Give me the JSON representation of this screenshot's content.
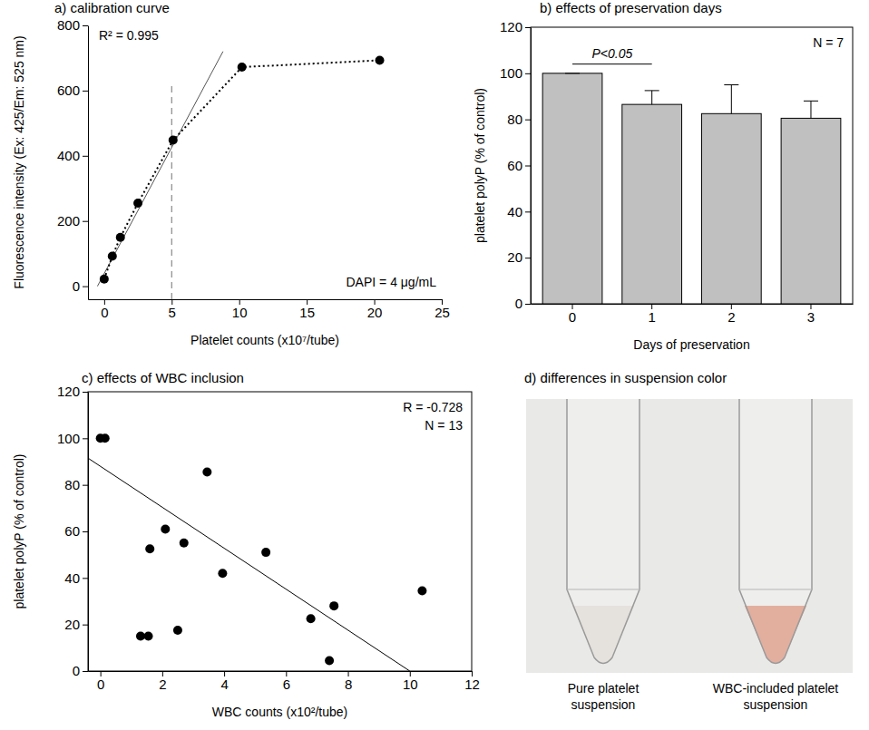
{
  "chart_data": [
    {
      "type": "line",
      "title": "a) calibration curve",
      "x_label": "Platelet counts (x10⁷/tube)",
      "y_label": "Fluorescence intensity (Ex: 425/Em: 525 nm)",
      "x": [
        0,
        0.6,
        1.2,
        2.5,
        5.1,
        10.2,
        20.4
      ],
      "values": [
        22,
        92,
        150,
        255,
        448,
        672,
        693
      ],
      "color": "#000000",
      "marker": "circle",
      "line_style": "dotted",
      "fit": {
        "x": [
          -0.5,
          8.8
        ],
        "y": [
          0,
          720
        ],
        "color": "#555555"
      },
      "cutoff": {
        "x": 5,
        "y": [
          -40,
          625
        ],
        "color": "#888888"
      },
      "annotations": [
        "R² = 0.995",
        "DAPI = 4 μg/mL"
      ],
      "xlim": [
        -1.2,
        25
      ],
      "xticks": [
        0,
        5,
        10,
        15,
        20,
        25
      ],
      "ylim": [
        -40,
        800
      ],
      "yticks": [
        0,
        200,
        400,
        600,
        800
      ],
      "grid": false
    },
    {
      "type": "bar",
      "title": "b) effects of preservation days",
      "x_label": "Days of preservation",
      "y_label": "platelet polyP (% of control)",
      "categories": [
        "0",
        "1",
        "2",
        "3"
      ],
      "values": [
        100,
        86.5,
        82.5,
        80.5
      ],
      "errors": [
        0,
        6,
        12.5,
        7.5
      ],
      "color": "#c0c0c0",
      "annotations": [
        "N = 7"
      ],
      "significance": {
        "text": "P<0.05",
        "from": "0",
        "to": "1",
        "y": 104
      },
      "ylim": [
        0,
        120
      ],
      "yticks": [
        0,
        20,
        40,
        60,
        80,
        100,
        120
      ],
      "grid": false
    },
    {
      "type": "scatter",
      "title": "c) effects of WBC inclusion",
      "x_label": "WBC counts (x10²/tube)",
      "y_label": "platelet polyP (% of control)",
      "x": [
        0,
        0.15,
        1.3,
        1.55,
        1.6,
        2.1,
        2.5,
        2.7,
        3.45,
        3.95,
        5.35,
        6.8,
        7.4,
        7.55,
        10.4
      ],
      "values": [
        100,
        100,
        15,
        15,
        52.5,
        61,
        17.5,
        55,
        85.5,
        42,
        51,
        22.5,
        4.5,
        28,
        34.5
      ],
      "color": "#000000",
      "marker": "circle",
      "fit": {
        "x": [
          -0.4,
          10
        ],
        "y": [
          91.5,
          0
        ],
        "color": "#000000"
      },
      "annotations": [
        "R = -0.728",
        "N = 13"
      ],
      "xlim": [
        -0.4,
        12
      ],
      "xticks": [
        0,
        2,
        4,
        6,
        8,
        10,
        12
      ],
      "ylim": [
        0,
        120
      ],
      "yticks": [
        0,
        20,
        40,
        60,
        80,
        100,
        120
      ],
      "grid": false
    }
  ],
  "photo": {
    "title": "d) differences in suspension color",
    "labels": [
      "Pure platelet suspension",
      "WBC-included platelet suspension"
    ],
    "colors": [
      "#dcd8d2",
      "#d9957f"
    ]
  }
}
